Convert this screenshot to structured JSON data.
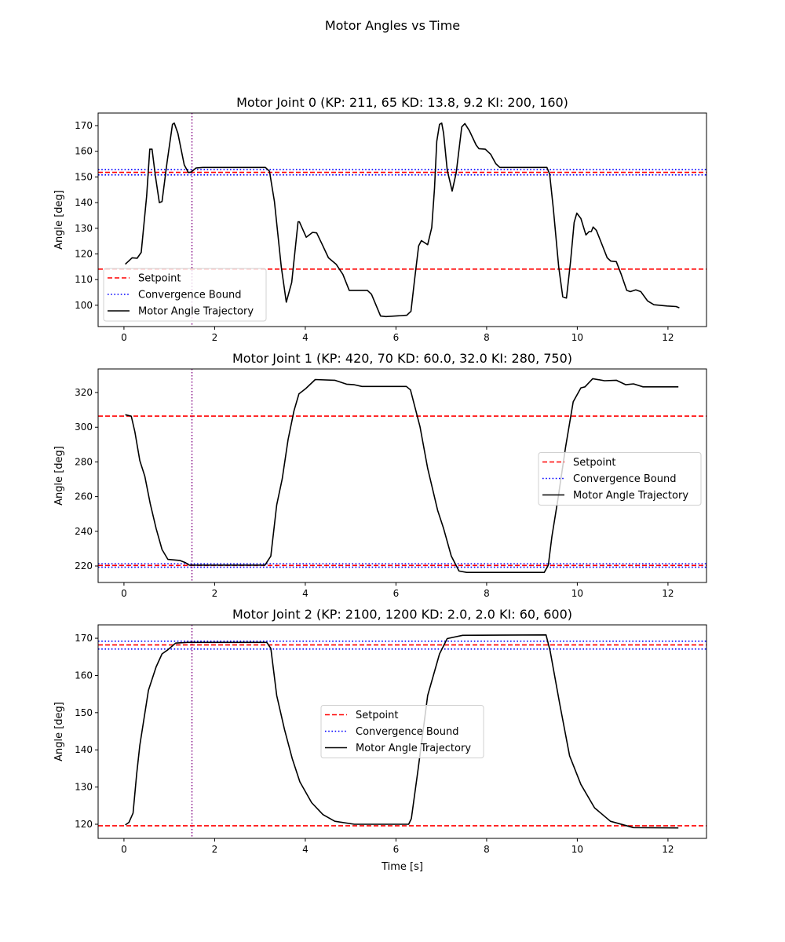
{
  "figure_title": "Motor Angles vs Time",
  "chart_data": [
    {
      "type": "line",
      "title": "Motor Joint 0 (KP: 211, 65 KD: 13.8, 9.2 KI: 200, 160)",
      "xlabel": "",
      "ylabel": "Angle [deg]",
      "xlim": [
        -0.57,
        12.85
      ],
      "ylim": [
        91.7,
        174.9
      ],
      "xticks": [
        0,
        2,
        4,
        6,
        8,
        10,
        12
      ],
      "yticks": [
        100,
        110,
        120,
        130,
        140,
        150,
        160,
        170
      ],
      "legend": [
        "Setpoint",
        "Convergence Bound",
        "Motor Angle Trajectory"
      ],
      "legend_placement": "lower-left",
      "setpoints": [
        151.8,
        114.1
      ],
      "convergence_bounds": [
        152.9,
        150.8
      ],
      "convergence_time": 1.5,
      "trajectory": [
        [
          0.03,
          116.0
        ],
        [
          0.18,
          118.5
        ],
        [
          0.29,
          118.3
        ],
        [
          0.38,
          120.6
        ],
        [
          0.5,
          142.5
        ],
        [
          0.57,
          160.8
        ],
        [
          0.62,
          160.8
        ],
        [
          0.69,
          150.7
        ],
        [
          0.78,
          140
        ],
        [
          0.84,
          140.4
        ],
        [
          0.95,
          155.7
        ],
        [
          1.07,
          170.5
        ],
        [
          1.11,
          171
        ],
        [
          1.19,
          167
        ],
        [
          1.33,
          154.7
        ],
        [
          1.42,
          151.7
        ],
        [
          1.48,
          151.9
        ],
        [
          1.59,
          153.5
        ],
        [
          1.74,
          153.7
        ],
        [
          3.12,
          153.7
        ],
        [
          3.21,
          152.2
        ],
        [
          3.32,
          140.4
        ],
        [
          3.47,
          115
        ],
        [
          3.58,
          101.2
        ],
        [
          3.7,
          108.9
        ],
        [
          3.84,
          132.5
        ],
        [
          3.87,
          132.5
        ],
        [
          4.02,
          126.5
        ],
        [
          4.16,
          128.4
        ],
        [
          4.25,
          128.2
        ],
        [
          4.36,
          124.2
        ],
        [
          4.51,
          118.5
        ],
        [
          4.68,
          116
        ],
        [
          4.83,
          112
        ],
        [
          4.97,
          105.8
        ],
        [
          5.37,
          105.8
        ],
        [
          5.46,
          104.3
        ],
        [
          5.66,
          95.8
        ],
        [
          5.78,
          95.6
        ],
        [
          6.24,
          96.1
        ],
        [
          6.29,
          97.0
        ],
        [
          6.33,
          97.6
        ],
        [
          6.41,
          109.9
        ],
        [
          6.5,
          123.1
        ],
        [
          6.56,
          125.2
        ],
        [
          6.7,
          123.6
        ],
        [
          6.79,
          130.3
        ],
        [
          6.85,
          145.5
        ],
        [
          6.9,
          163.9
        ],
        [
          6.96,
          170.5
        ],
        [
          7.01,
          171
        ],
        [
          7.05,
          167
        ],
        [
          7.13,
          152.7
        ],
        [
          7.24,
          144.5
        ],
        [
          7.33,
          151.7
        ],
        [
          7.45,
          169.5
        ],
        [
          7.52,
          170.8
        ],
        [
          7.62,
          168
        ],
        [
          7.77,
          162.4
        ],
        [
          7.83,
          161
        ],
        [
          7.97,
          160.8
        ],
        [
          8.09,
          158.8
        ],
        [
          8.2,
          155.2
        ],
        [
          8.29,
          153.7
        ],
        [
          9.33,
          153.7
        ],
        [
          9.39,
          151.1
        ],
        [
          9.47,
          137.9
        ],
        [
          9.59,
          115
        ],
        [
          9.68,
          103.3
        ],
        [
          9.76,
          102.8
        ],
        [
          9.85,
          117
        ],
        [
          9.93,
          132.3
        ],
        [
          9.99,
          135.9
        ],
        [
          10.08,
          133.8
        ],
        [
          10.19,
          127.4
        ],
        [
          10.26,
          128.7
        ],
        [
          10.31,
          128.7
        ],
        [
          10.35,
          130.5
        ],
        [
          10.42,
          129.2
        ],
        [
          10.51,
          125.2
        ],
        [
          10.66,
          118.5
        ],
        [
          10.74,
          117.2
        ],
        [
          10.86,
          117
        ],
        [
          10.97,
          112
        ],
        [
          11.09,
          105.8
        ],
        [
          11.17,
          105.3
        ],
        [
          11.29,
          106
        ],
        [
          11.4,
          105.3
        ],
        [
          11.55,
          101.7
        ],
        [
          11.69,
          100.2
        ],
        [
          11.98,
          99.7
        ],
        [
          12.18,
          99.5
        ],
        [
          12.25,
          99
        ]
      ]
    },
    {
      "type": "line",
      "title": "Motor Joint 1 (KP: 420, 70 KD: 60.0, 32.0 KI: 280, 750)",
      "xlabel": "",
      "ylabel": "Angle [deg]",
      "xlim": [
        -0.57,
        12.85
      ],
      "ylim": [
        210.5,
        333.6
      ],
      "xticks": [
        0,
        2,
        4,
        6,
        8,
        10,
        12
      ],
      "yticks": [
        220,
        240,
        260,
        280,
        300,
        320
      ],
      "legend": [
        "Setpoint",
        "Convergence Bound",
        "Motor Angle Trajectory"
      ],
      "legend_placement": "center-right",
      "setpoints": [
        306.4,
        220.3
      ],
      "convergence_bounds": [
        221.3,
        219.3
      ],
      "convergence_time": 1.5,
      "trajectory": [
        [
          0.03,
          307.2
        ],
        [
          0.16,
          306.4
        ],
        [
          0.24,
          297.4
        ],
        [
          0.35,
          280.8
        ],
        [
          0.46,
          271.7
        ],
        [
          0.58,
          255.9
        ],
        [
          0.71,
          241.6
        ],
        [
          0.84,
          229.5
        ],
        [
          0.97,
          223.8
        ],
        [
          1.23,
          223.2
        ],
        [
          1.35,
          222
        ],
        [
          1.44,
          220.5
        ],
        [
          3.11,
          220.5
        ],
        [
          3.24,
          225.7
        ],
        [
          3.37,
          255.2
        ],
        [
          3.49,
          270.2
        ],
        [
          3.62,
          292.9
        ],
        [
          3.75,
          309.5
        ],
        [
          3.86,
          319.2
        ],
        [
          4.01,
          322.3
        ],
        [
          4.22,
          327.5
        ],
        [
          4.65,
          327.1
        ],
        [
          4.91,
          324.8
        ],
        [
          5.08,
          324.5
        ],
        [
          5.25,
          323.5
        ],
        [
          6.23,
          323.5
        ],
        [
          6.32,
          321.5
        ],
        [
          6.53,
          300.4
        ],
        [
          6.7,
          276.3
        ],
        [
          6.92,
          252.1
        ],
        [
          7.05,
          241.6
        ],
        [
          7.22,
          225.7
        ],
        [
          7.39,
          217.1
        ],
        [
          7.56,
          216.3
        ],
        [
          9.27,
          216.3
        ],
        [
          9.36,
          220.5
        ],
        [
          9.44,
          237.1
        ],
        [
          9.57,
          258.1
        ],
        [
          9.74,
          288.3
        ],
        [
          9.91,
          314.7
        ],
        [
          10.08,
          322.7
        ],
        [
          10.17,
          323.3
        ],
        [
          10.34,
          328
        ],
        [
          10.6,
          326.8
        ],
        [
          10.86,
          327.1
        ],
        [
          11.07,
          324.5
        ],
        [
          11.24,
          325
        ],
        [
          11.45,
          323.3
        ],
        [
          12.23,
          323.3
        ]
      ]
    },
    {
      "type": "line",
      "title": "Motor Joint 2 (KP: 2100, 1200 KD: 2.0, 2.0 KI: 60, 600)",
      "xlabel": "Time [s]",
      "ylabel": "Angle [deg]",
      "xlim": [
        -0.57,
        12.85
      ],
      "ylim": [
        116.2,
        173.6
      ],
      "xticks": [
        0,
        2,
        4,
        6,
        8,
        10,
        12
      ],
      "yticks": [
        120,
        130,
        140,
        150,
        160,
        170
      ],
      "legend": [
        "Setpoint",
        "Convergence Bound",
        "Motor Angle Trajectory"
      ],
      "legend_placement": "center",
      "setpoints": [
        168.2,
        119.6
      ],
      "convergence_bounds": [
        169.2,
        167.1
      ],
      "convergence_time": 1.5,
      "trajectory": [
        [
          0.03,
          119.8
        ],
        [
          0.11,
          120.5
        ],
        [
          0.2,
          123
        ],
        [
          0.28,
          133.5
        ],
        [
          0.35,
          141.2
        ],
        [
          0.54,
          156
        ],
        [
          0.71,
          162.3
        ],
        [
          0.84,
          165.8
        ],
        [
          0.97,
          166.9
        ],
        [
          1.14,
          168.7
        ],
        [
          1.4,
          168.9
        ],
        [
          3.15,
          168.9
        ],
        [
          3.24,
          167.3
        ],
        [
          3.37,
          154.6
        ],
        [
          3.54,
          145.5
        ],
        [
          3.71,
          137.7
        ],
        [
          3.88,
          131.4
        ],
        [
          4.14,
          125.8
        ],
        [
          4.39,
          122.6
        ],
        [
          4.65,
          120.8
        ],
        [
          5.08,
          120
        ],
        [
          6.28,
          120
        ],
        [
          6.34,
          121.5
        ],
        [
          6.49,
          134.9
        ],
        [
          6.7,
          154.6
        ],
        [
          6.96,
          165.8
        ],
        [
          7.13,
          169.9
        ],
        [
          7.47,
          170.8
        ],
        [
          9.31,
          170.9
        ],
        [
          9.4,
          166.6
        ],
        [
          9.61,
          152.5
        ],
        [
          9.83,
          138.4
        ],
        [
          10.08,
          130.7
        ],
        [
          10.38,
          124.4
        ],
        [
          10.73,
          120.8
        ],
        [
          11.24,
          119.1
        ],
        [
          12.23,
          119
        ]
      ]
    }
  ]
}
